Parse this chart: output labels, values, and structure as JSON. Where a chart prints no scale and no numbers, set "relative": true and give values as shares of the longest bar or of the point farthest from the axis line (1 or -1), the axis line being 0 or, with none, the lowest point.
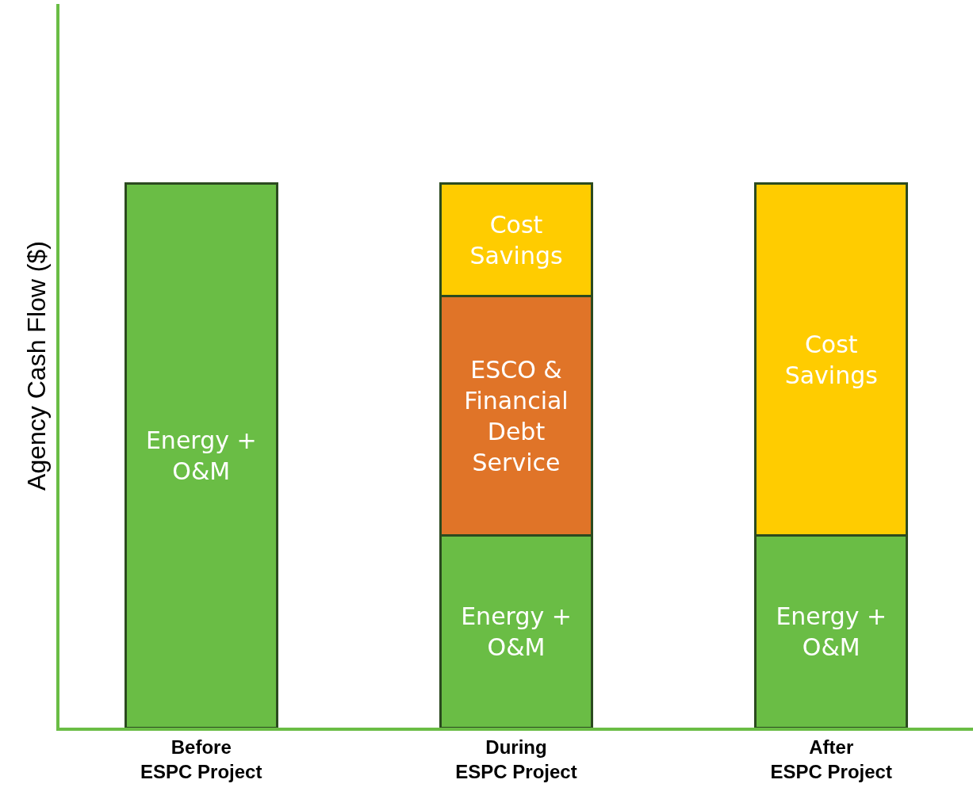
{
  "chart_data": {
    "type": "bar",
    "stacked": true,
    "relative": true,
    "ylabel": "Agency Cash Flow ($)",
    "categories": [
      "Before\nESPC Project",
      "During\nESPC Project",
      "After\nESPC Project"
    ],
    "series": [
      {
        "name": "Energy +\nO&M",
        "color": "#6abd45",
        "values": [
          1,
          0.353,
          0.353
        ]
      },
      {
        "name": "ESCO &\nFinancial\nDebt\nService",
        "color": "#e07428",
        "values": [
          null,
          0.44,
          null
        ]
      },
      {
        "name": "Cost\nSavings",
        "color": "#ffcc00",
        "values": [
          null,
          0.207,
          0.647
        ]
      }
    ],
    "legend": false
  }
}
